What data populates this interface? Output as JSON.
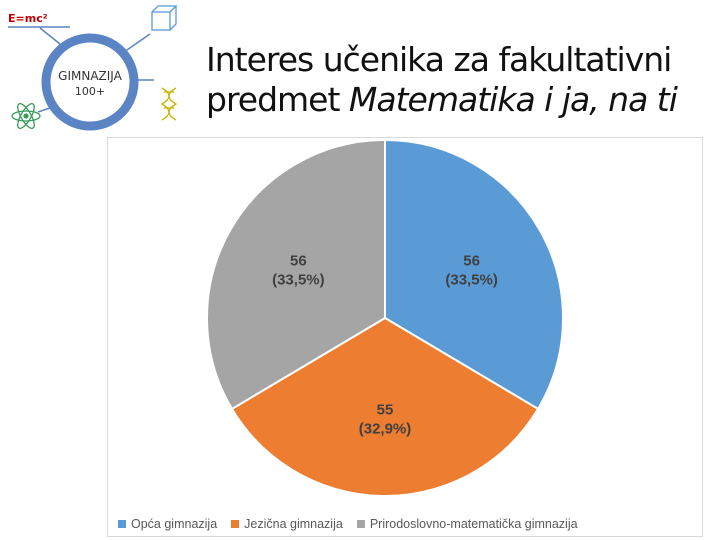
{
  "logo": {
    "formula": "E=mc²",
    "name": "GIMNAZIJA",
    "subtitle": "100+",
    "ring_color": "#5b84c4"
  },
  "title": {
    "line1": "Interes učenika za fakultativni",
    "line2_prefix": "predmet ",
    "line2_italic": "Matematika i ja, na ti"
  },
  "chart_data": {
    "type": "pie",
    "slices": [
      {
        "name": "Opća gimnazija",
        "value": 56,
        "label": "56",
        "percent_label": "(33,5%)",
        "color": "#5b9bd5"
      },
      {
        "name": "Jezična gimnazija",
        "value": 55,
        "label": "55",
        "percent_label": "(32,9%)",
        "color": "#ed7d31"
      },
      {
        "name": "Prirodoslovno-matematička gimnazija",
        "value": 56,
        "label": "56",
        "percent_label": "(33,5%)",
        "color": "#a5a5a5"
      }
    ],
    "start_angle": "12 o'clock",
    "direction": "clockwise",
    "legend_position": "bottom",
    "label_color": "#404040"
  }
}
